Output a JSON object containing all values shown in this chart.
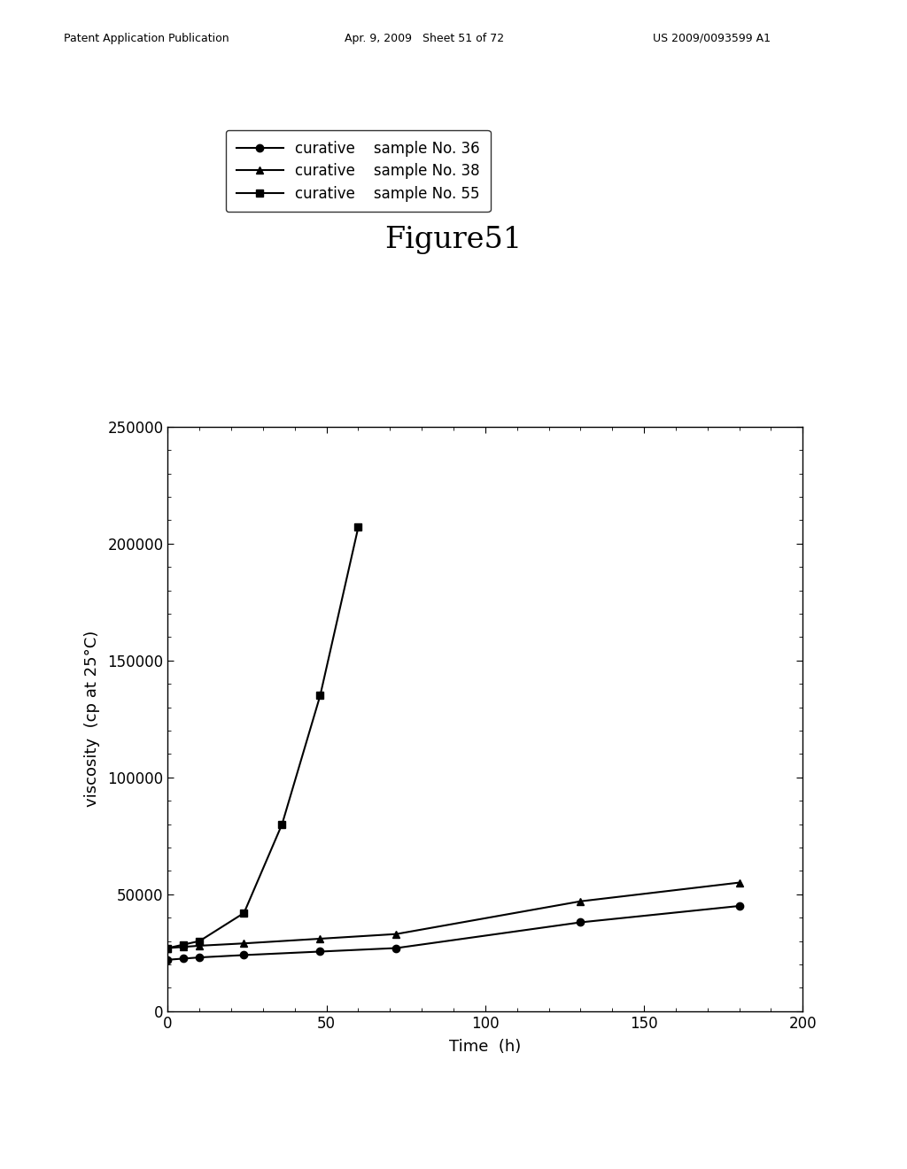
{
  "title": "Figure51",
  "xlabel": "Time  (h)",
  "ylabel": "viscosity  (cp at 25°C)",
  "xlim": [
    0,
    200
  ],
  "ylim": [
    0,
    250000
  ],
  "xticks": [
    0,
    50,
    100,
    150,
    200
  ],
  "yticks": [
    0,
    50000,
    100000,
    150000,
    200000,
    250000
  ],
  "series": [
    {
      "label_col1": "curative",
      "label_col2": "sample No. 36",
      "marker": "o",
      "x": [
        0,
        5,
        10,
        24,
        48,
        72,
        130,
        180
      ],
      "y": [
        22000,
        22500,
        23000,
        24000,
        25500,
        27000,
        38000,
        45000
      ]
    },
    {
      "label_col1": "curative",
      "label_col2": "sample No. 38",
      "marker": "^",
      "x": [
        0,
        5,
        10,
        24,
        48,
        72,
        130,
        180
      ],
      "y": [
        27000,
        27500,
        28000,
        29000,
        31000,
        33000,
        47000,
        55000
      ]
    },
    {
      "label_col1": "curative",
      "label_col2": "sample No. 55",
      "marker": "s",
      "x": [
        0,
        5,
        10,
        24,
        36,
        48,
        60
      ],
      "y": [
        27000,
        28500,
        30000,
        42000,
        80000,
        135000,
        207000
      ]
    }
  ],
  "line_color": "#000000",
  "background_color": "#ffffff",
  "title_fontsize": 24,
  "axis_fontsize": 13,
  "tick_fontsize": 12,
  "legend_fontsize": 12,
  "header_left": "Patent Application Publication",
  "header_mid": "Apr. 9, 2009   Sheet 51 of 72",
  "header_right": "US 2009/0093599 A1",
  "header_fontsize": 9
}
